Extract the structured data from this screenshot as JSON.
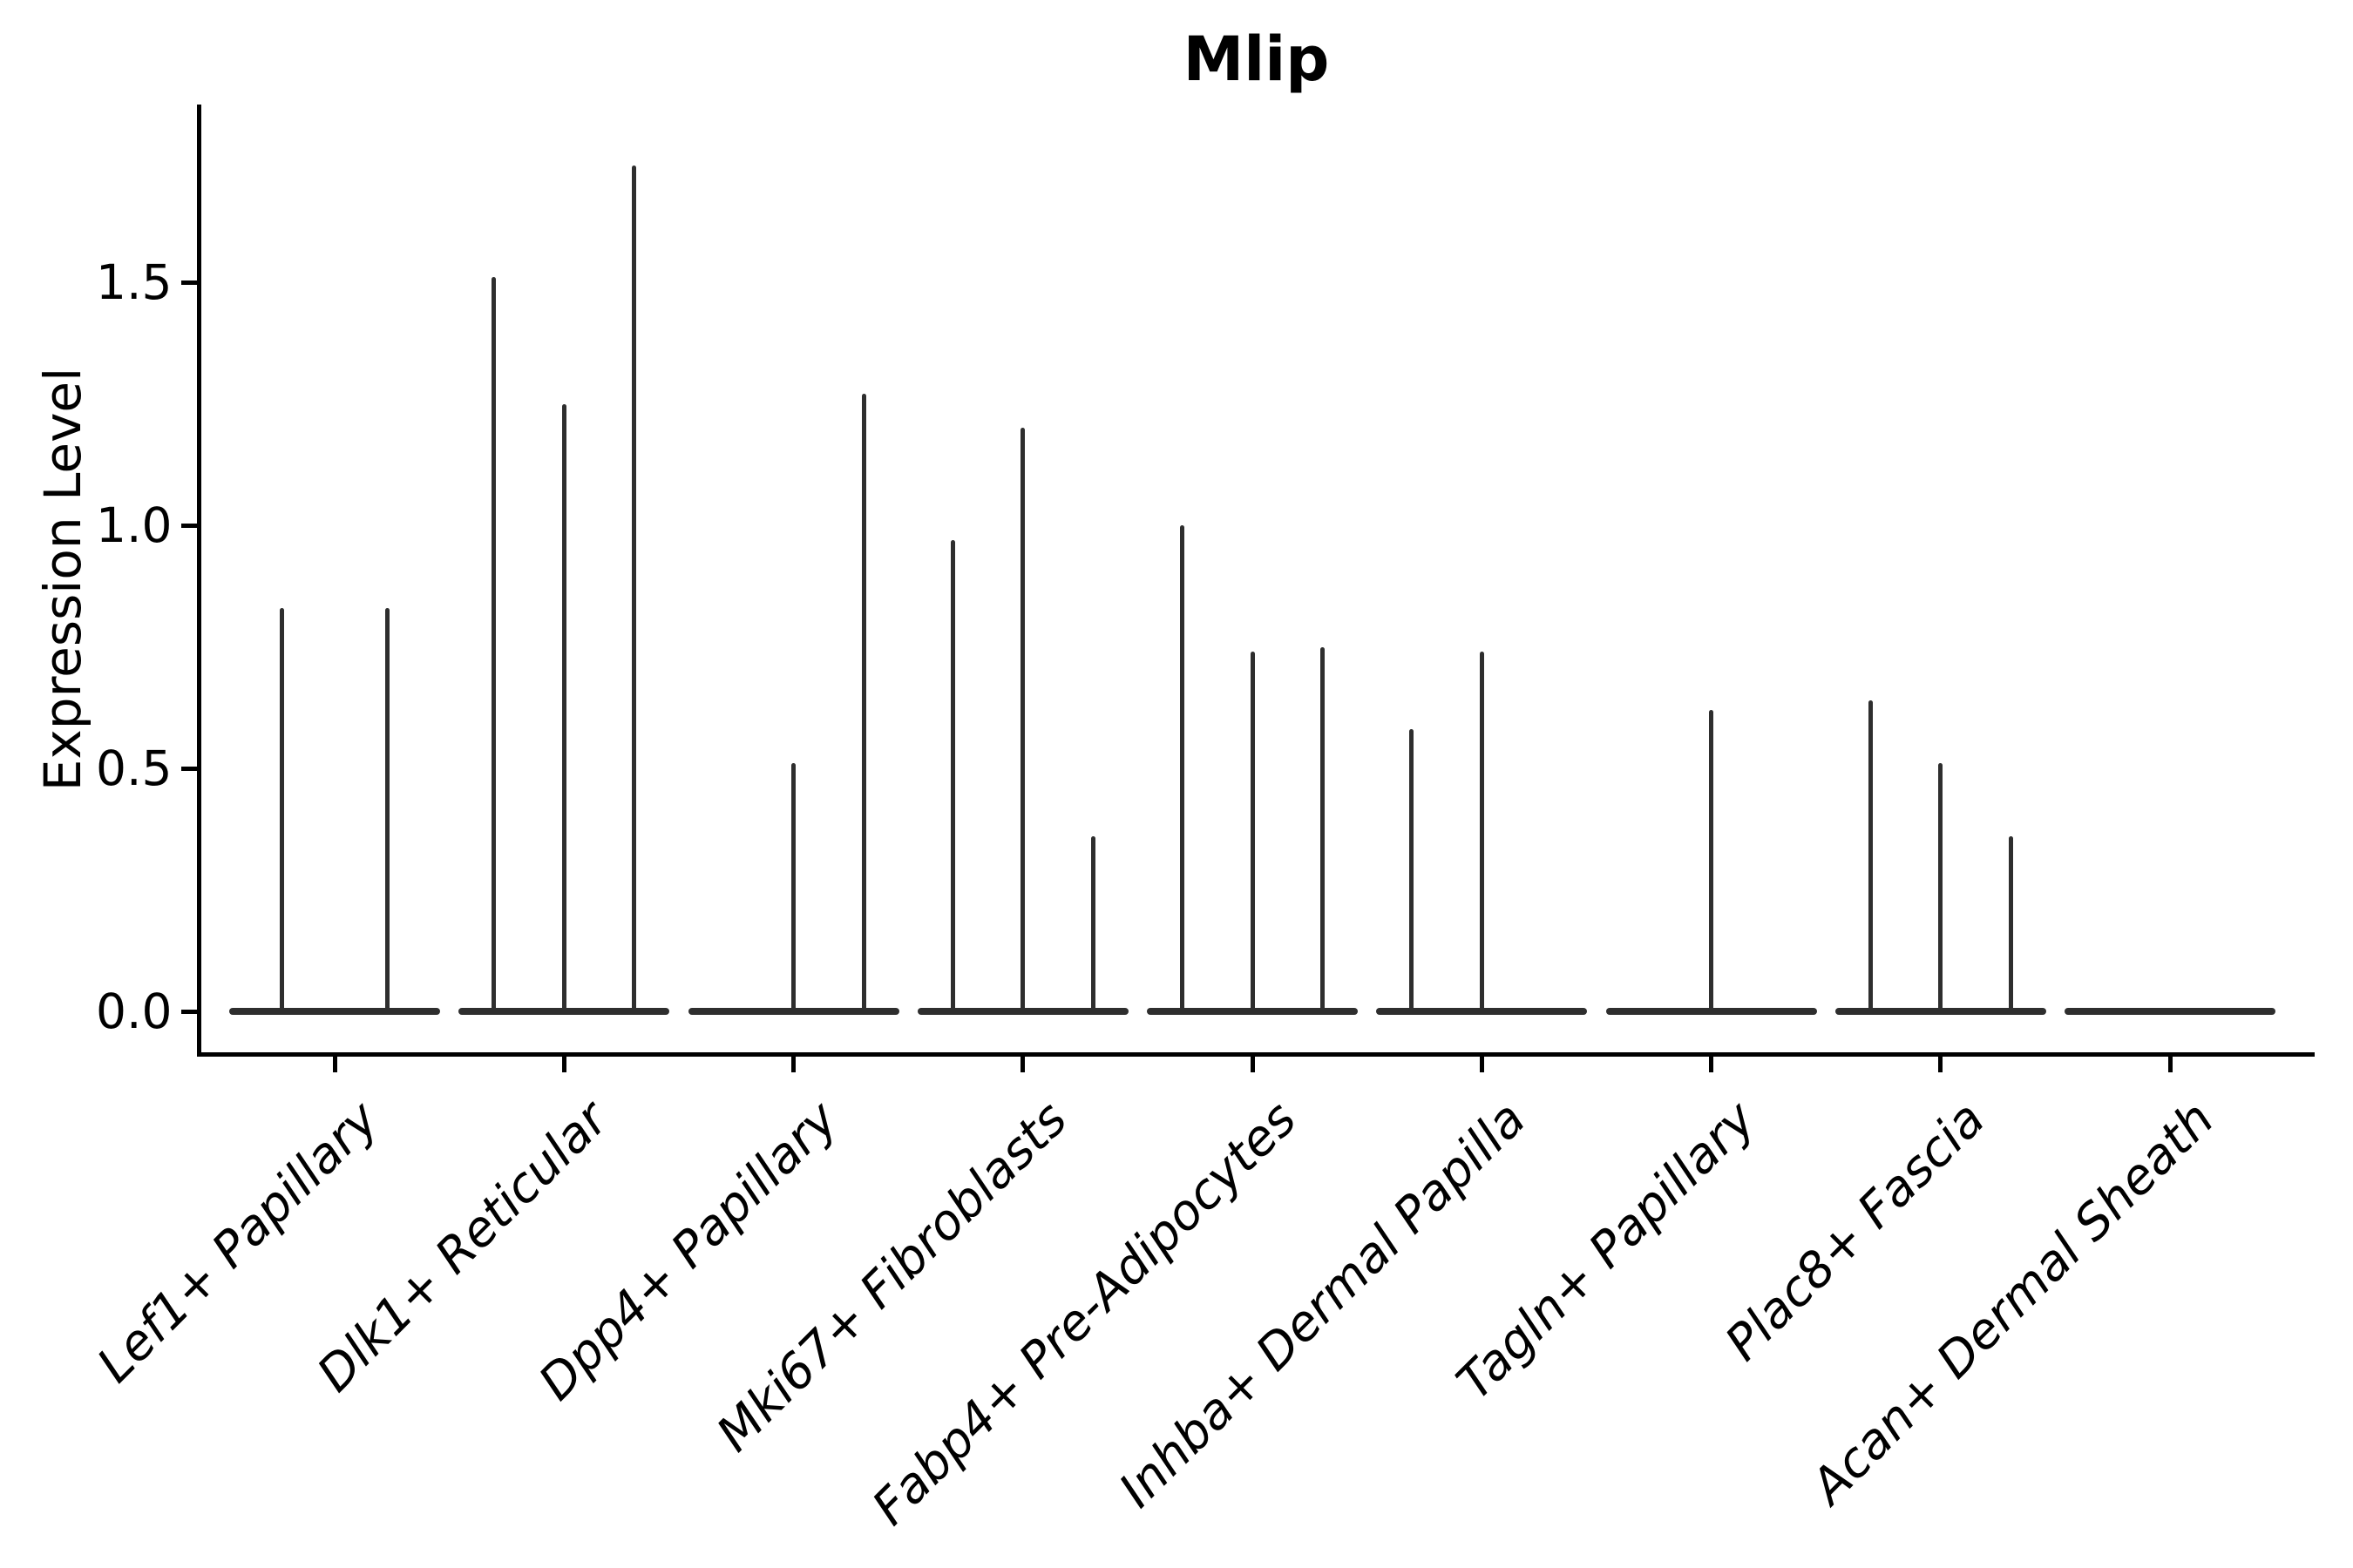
{
  "chart_data": {
    "type": "violin",
    "title": "Mlip",
    "ylabel": "Expression Level",
    "xlabel": "",
    "ylim": [
      -0.09,
      1.86
    ],
    "yticks": [
      0.0,
      0.5,
      1.0,
      1.5
    ],
    "ytick_labels": [
      "0.0",
      "0.5",
      "1.0",
      "1.5"
    ],
    "grid": false,
    "legend": false,
    "line_color": "#2e2e2e",
    "axis_color": "#000000",
    "categories": [
      "Lef1+ Papillary",
      "Dlk1+ Reticular",
      "Dpp4+ Papillary",
      "Mki67+ Fibroblasts",
      "Fabp4+ Pre-Adipocytes",
      "Inhba+ Dermal Papilla",
      "Tagln+ Papillary",
      "Plac8+ Fascia",
      "Acan+ Dermal Sheath"
    ],
    "groups": [
      {
        "category": "Lef1+ Papillary",
        "violins": [
          {
            "position": 0.25,
            "max": 0.83
          },
          {
            "position": 0.75,
            "max": 0.83
          }
        ]
      },
      {
        "category": "Dlk1+ Reticular",
        "violins": [
          {
            "position": 0.167,
            "max": 1.51
          },
          {
            "position": 0.5,
            "max": 1.25
          },
          {
            "position": 0.833,
            "max": 1.74
          }
        ]
      },
      {
        "category": "Dpp4+ Papillary",
        "violins": [
          {
            "position": 0.167,
            "max": 0.0
          },
          {
            "position": 0.5,
            "max": 0.51
          },
          {
            "position": 0.833,
            "max": 1.27
          }
        ]
      },
      {
        "category": "Mki67+ Fibroblasts",
        "violins": [
          {
            "position": 0.167,
            "max": 0.97
          },
          {
            "position": 0.5,
            "max": 1.2
          },
          {
            "position": 0.833,
            "max": 0.36
          }
        ]
      },
      {
        "category": "Fabp4+ Pre-Adipocytes",
        "violins": [
          {
            "position": 0.167,
            "max": 1.0
          },
          {
            "position": 0.5,
            "max": 0.74
          },
          {
            "position": 0.833,
            "max": 0.75
          }
        ]
      },
      {
        "category": "Inhba+ Dermal Papilla",
        "violins": [
          {
            "position": 0.167,
            "max": 0.58
          },
          {
            "position": 0.5,
            "max": 0.74
          },
          {
            "position": 0.833,
            "max": 0.0
          }
        ]
      },
      {
        "category": "Tagln+ Papillary",
        "violins": [
          {
            "position": 0.167,
            "max": 0.0
          },
          {
            "position": 0.5,
            "max": 0.62
          },
          {
            "position": 0.833,
            "max": 0.0
          }
        ]
      },
      {
        "category": "Plac8+ Fascia",
        "violins": [
          {
            "position": 0.167,
            "max": 0.64
          },
          {
            "position": 0.5,
            "max": 0.51
          },
          {
            "position": 0.833,
            "max": 0.36
          }
        ]
      },
      {
        "category": "Acan+ Dermal Sheath",
        "violins": [
          {
            "position": 0.167,
            "max": 0.0
          },
          {
            "position": 0.5,
            "max": 0.0
          },
          {
            "position": 0.833,
            "max": 0.0
          }
        ]
      }
    ]
  }
}
